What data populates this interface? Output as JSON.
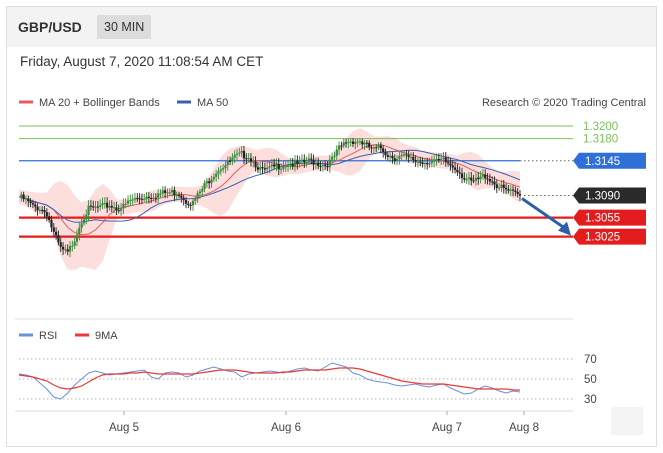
{
  "header": {
    "symbol": "GBP/USD",
    "interval": "30 MIN",
    "datetime": "Friday, August 7, 2020 11:08:54 AM CET"
  },
  "colors": {
    "ma20": "#e85c5c",
    "bollinger_band": "#fbd3d1",
    "ma50": "#3b5fb0",
    "candle_up": "#3a8a3a",
    "candle_down": "#222222",
    "target_green": "#7cbf5a",
    "resistance_blue": "#2e6fd8",
    "support_red": "#e31d1d",
    "last_price": "#2a2a2a",
    "rsi": "#6a8fd8",
    "rsi_ma": "#e83a3a"
  },
  "chart_data": [
    {
      "type": "candlestick",
      "title": "",
      "legend": [
        {
          "name": "MA 20 + Bollinger Bands",
          "icon": "pink-line-icon"
        },
        {
          "name": "MA 50",
          "icon": "blue-line-icon"
        }
      ],
      "source": "Research © 2020 Trading Central",
      "x_ticks": [
        "Aug 5",
        "Aug 6",
        "Aug 7",
        "Aug 8"
      ],
      "ylim": [
        1.2975,
        1.3225
      ],
      "levels": [
        {
          "label": "1.3200",
          "value": 1.32,
          "style": "target"
        },
        {
          "label": "1.3180",
          "value": 1.318,
          "style": "target"
        },
        {
          "label": "1.3145",
          "value": 1.3145,
          "style": "resistance"
        },
        {
          "label": "1.3090",
          "value": 1.309,
          "style": "last"
        },
        {
          "label": "1.3055",
          "value": 1.3055,
          "style": "support"
        },
        {
          "label": "1.3025",
          "value": 1.3025,
          "style": "support"
        }
      ],
      "price_path": [
        1.3088,
        1.3082,
        1.3072,
        1.307,
        1.3062,
        1.303,
        1.3005,
        1.2998,
        1.3022,
        1.3052,
        1.3068,
        1.307,
        1.3072,
        1.3075,
        1.307,
        1.3072,
        1.3082,
        1.3085,
        1.3088,
        1.309,
        1.3092,
        1.3094,
        1.3095,
        1.3094,
        1.3082,
        1.3078,
        1.3095,
        1.311,
        1.3125,
        1.3135,
        1.314,
        1.315,
        1.3155,
        1.3152,
        1.314,
        1.3128,
        1.3132,
        1.3136,
        1.3139,
        1.3141,
        1.3138,
        1.3142,
        1.3145,
        1.3141,
        1.3138,
        1.3146,
        1.3164,
        1.3175,
        1.3177,
        1.3176,
        1.3168,
        1.3162,
        1.3165,
        1.3155,
        1.315,
        1.3152,
        1.3148,
        1.3145,
        1.3143,
        1.3145,
        1.3142,
        1.3145,
        1.3138,
        1.3132,
        1.3118,
        1.311,
        1.3115,
        1.3122,
        1.3113,
        1.3103,
        1.3098,
        1.3093,
        1.309
      ],
      "forecast": {
        "from": 1.309,
        "to": 1.3025,
        "direction": "down"
      }
    },
    {
      "type": "line",
      "title": "",
      "legend": [
        {
          "name": "RSI",
          "icon": "blue-line-icon"
        },
        {
          "name": "9MA",
          "icon": "red-line-icon"
        }
      ],
      "y_ticks": [
        "70",
        "50",
        "30"
      ],
      "ylim": [
        20,
        80
      ],
      "series": [
        {
          "name": "RSI",
          "values": [
            55,
            54,
            52,
            46,
            40,
            32,
            30,
            36,
            44,
            50,
            56,
            58,
            56,
            54,
            55,
            56,
            57,
            58,
            59,
            52,
            50,
            56,
            57,
            56,
            52,
            54,
            58,
            60,
            62,
            60,
            58,
            57,
            52,
            55,
            56,
            57,
            58,
            57,
            56,
            58,
            60,
            61,
            59,
            58,
            62,
            66,
            64,
            62,
            56,
            54,
            50,
            48,
            47,
            46,
            44,
            43,
            44,
            45,
            43,
            42,
            44,
            45,
            41,
            38,
            35,
            36,
            40,
            43,
            41,
            38,
            36,
            38,
            37
          ]
        },
        {
          "name": "9MA",
          "values": [
            54,
            53,
            52,
            50,
            48,
            44,
            41,
            40,
            41,
            43,
            47,
            51,
            54,
            55,
            55,
            55,
            56,
            56,
            57,
            56,
            55,
            55,
            55,
            55,
            55,
            55,
            56,
            57,
            58,
            59,
            59,
            59,
            58,
            57,
            56,
            56,
            56,
            56,
            57,
            57,
            58,
            59,
            59,
            59,
            59,
            60,
            61,
            61,
            61,
            60,
            58,
            56,
            54,
            52,
            50,
            48,
            47,
            46,
            45,
            45,
            45,
            45,
            44,
            43,
            42,
            41,
            40,
            40,
            40,
            40,
            40,
            39,
            39
          ]
        }
      ]
    }
  ]
}
